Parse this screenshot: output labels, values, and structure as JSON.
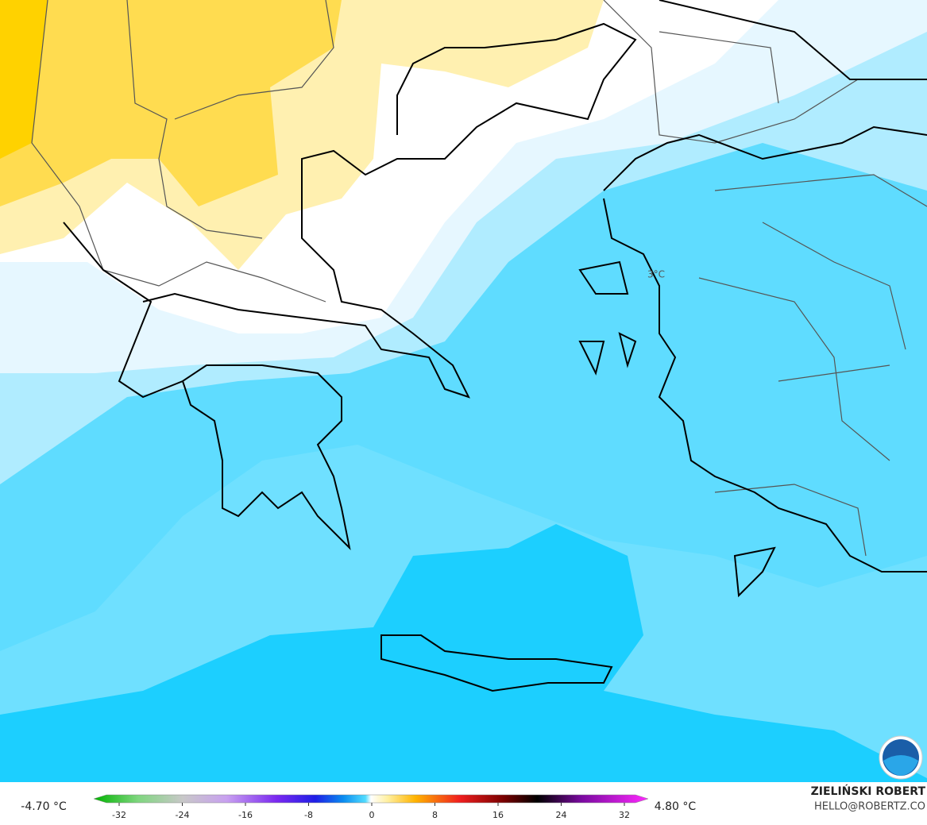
{
  "map": {
    "label": "3°C"
  },
  "colorbar": {
    "min_label": "-4.70 °C",
    "max_label": "4.80 °C",
    "ticks": [
      -32,
      -24,
      -16,
      -8,
      0,
      8,
      16,
      24,
      32
    ]
  },
  "credit": {
    "author": "ZIELIŃSKI ROBERT",
    "email": "HELLO@ROBERTZ.CO"
  }
}
